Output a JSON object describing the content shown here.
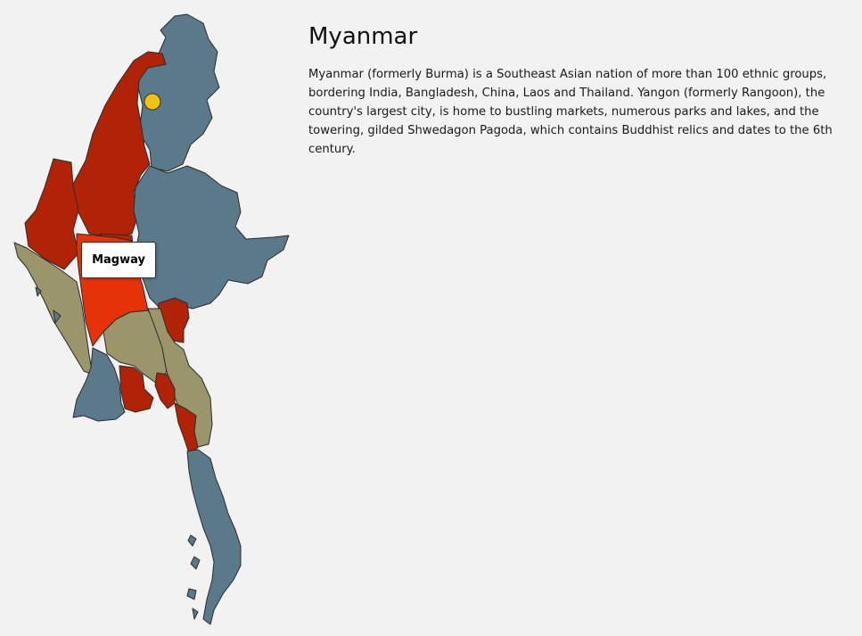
{
  "country": {
    "title": "Myanmar",
    "description": "Myanmar (formerly Burma) is a Southeast Asian nation of more than 100 ethnic groups, bordering India, Bangladesh, China, Laos and Thailand. Yangon (formerly Rangoon), the country's largest city, is home to bustling markets, numerous parks and lakes, and the towering, gilded Shwedagon Pagoda, which contains Buddhist relics and dates to the 6th century."
  },
  "map": {
    "hovered_region": "Magway",
    "colors": {
      "blue": "#5a7a8c",
      "red": "#b02306",
      "olive": "#9a956a",
      "highlight": "#e63208",
      "marker": "#f2c40f",
      "background": "#f2f2f2"
    }
  }
}
